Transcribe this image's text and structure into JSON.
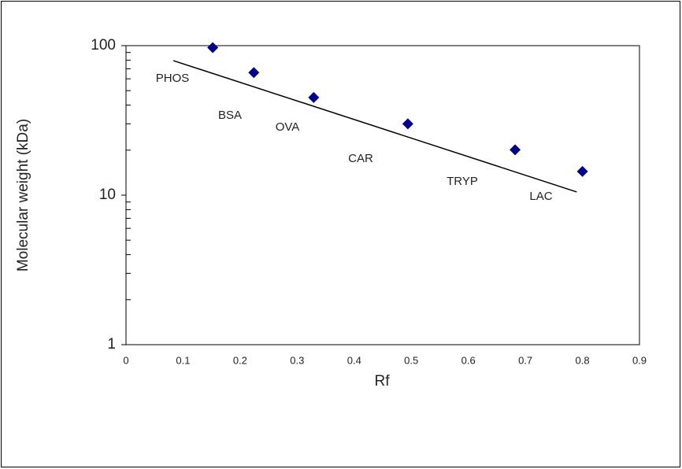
{
  "chart_data": {
    "type": "scatter",
    "x_label": "Rf",
    "y_label": "Molecular weight (kDa)",
    "x": [
      0.152,
      0.224,
      0.329,
      0.494,
      0.682,
      0.8
    ],
    "values": [
      97,
      66,
      45,
      30,
      20.1,
      14.4
    ],
    "point_labels": [
      "PHOS",
      "BSA",
      "OVA",
      "CAR",
      "TRYP",
      "LAC"
    ],
    "color": "#00008b",
    "trendline": {
      "x": [
        0.083,
        0.79
      ],
      "values": [
        79.4,
        10.5
      ],
      "color": "#000000"
    },
    "xlim": [
      0,
      0.9
    ],
    "xticks": [
      0,
      0.1,
      0.2,
      0.3,
      0.4,
      0.5,
      0.6,
      0.7,
      0.8,
      0.9
    ],
    "ylim": [
      1,
      100
    ],
    "yticks": [
      1,
      10,
      100
    ],
    "yminor_ticks": [
      2,
      3,
      4,
      5,
      6,
      7,
      8,
      9,
      20,
      30,
      40,
      50,
      60,
      70,
      80,
      90
    ],
    "log_y": true
  }
}
